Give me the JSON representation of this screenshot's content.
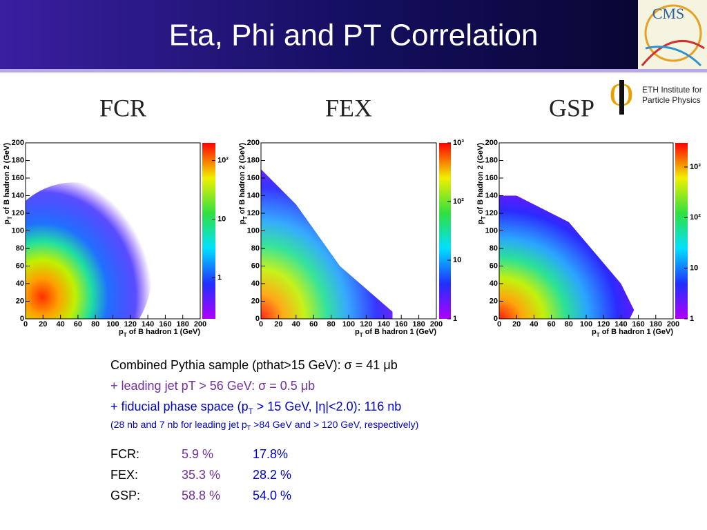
{
  "title": "Eta, Phi and PT Correlation",
  "logos": {
    "cms": "CMS",
    "eth": [
      "ETH Institute for",
      "Particle Physics"
    ]
  },
  "panels": [
    {
      "label": "FCR",
      "x_label": [
        "p",
        "T",
        " of B hadron 1 (GeV)"
      ],
      "y_label": [
        "p",
        "T",
        " of B hadron 2 (GeV)"
      ],
      "xlim": [
        0,
        200
      ],
      "ylim": [
        0,
        200
      ],
      "xticks": [
        0,
        20,
        40,
        60,
        80,
        100,
        120,
        140,
        160,
        180,
        200
      ],
      "yticks": [
        0,
        20,
        40,
        60,
        80,
        100,
        120,
        140,
        160,
        180,
        200
      ],
      "log_colorbar": true,
      "clim": [
        0.2,
        200
      ],
      "colorbar_ticks": [
        1,
        10,
        {
          "value": 100,
          "label": "10²"
        }
      ]
    },
    {
      "label": "FEX",
      "x_label": [
        "p",
        "T",
        " of B hadron 1 (GeV)"
      ],
      "y_label": [
        "p",
        "T",
        " of B hadron 2 (GeV)"
      ],
      "xlim": [
        0,
        200
      ],
      "ylim": [
        0,
        200
      ],
      "xticks": [
        0,
        20,
        40,
        60,
        80,
        100,
        120,
        140,
        160,
        180,
        200
      ],
      "yticks": [
        0,
        20,
        40,
        60,
        80,
        100,
        120,
        140,
        160,
        180,
        200
      ],
      "log_colorbar": true,
      "clim": [
        1,
        1000
      ],
      "colorbar_ticks": [
        1,
        10,
        {
          "value": 100,
          "label": "10²"
        },
        {
          "value": 1000,
          "label": "10³"
        }
      ]
    },
    {
      "label": "GSP",
      "x_label": [
        "p",
        "T",
        " of B hadron 1 (GeV)"
      ],
      "y_label": [
        "p",
        "T",
        " of B hadron 2 (GeV)"
      ],
      "xlim": [
        0,
        200
      ],
      "ylim": [
        0,
        200
      ],
      "xticks": [
        0,
        20,
        40,
        60,
        80,
        100,
        120,
        140,
        160,
        180,
        200
      ],
      "yticks": [
        0,
        20,
        40,
        60,
        80,
        100,
        120,
        140,
        160,
        180,
        200
      ],
      "log_colorbar": true,
      "clim": [
        1,
        3000
      ],
      "colorbar_ticks": [
        1,
        10,
        {
          "value": 100,
          "label": "10²"
        },
        {
          "value": 1000,
          "label": "10³"
        }
      ]
    }
  ],
  "notes": [
    {
      "parts": [
        "Combined Pythia sample (pthat>15 GeV): σ = 41 μb"
      ],
      "color": "#000000"
    },
    {
      "parts": [
        "+ leading jet pT > 56 GeV: σ = 0.5 μb"
      ],
      "color": "#7030a0"
    },
    {
      "parts": [
        "+ fiducial phase space (p",
        "T",
        " > 15 GeV, |η|<2.0): 116 nb"
      ],
      "color": "#0000cc"
    },
    {
      "parts": [
        "(28 nb and 7 nb for leading jet p",
        "T",
        " >84 GeV and > 120 GeV, respectively)"
      ],
      "color": "#0000cc"
    }
  ],
  "table": {
    "colors": [
      "#000000",
      "#7030a0",
      "#0000cc"
    ],
    "rows": [
      [
        "FCR:",
        "5.9 %",
        "17.8%"
      ],
      [
        "FEX:",
        "35.3 %",
        "28.2 %"
      ],
      [
        "GSP:",
        "58.8 %",
        "54.0 %"
      ]
    ]
  }
}
